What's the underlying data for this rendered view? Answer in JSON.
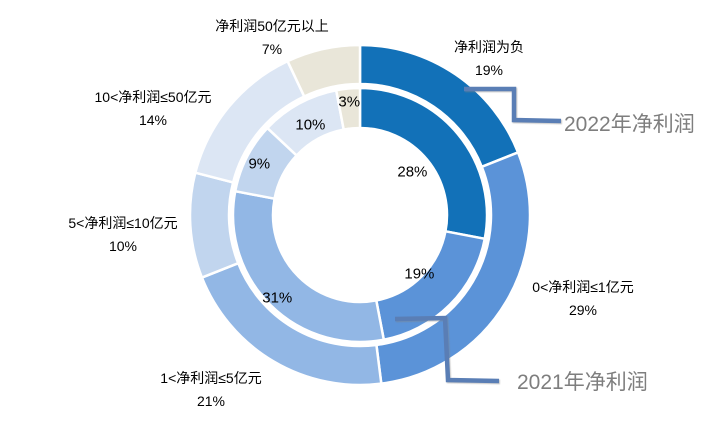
{
  "chart_data": {
    "type": "doughnut",
    "title": "",
    "categories": [
      "净利润为负",
      "0<净利润≤1亿元",
      "1<净利润≤5亿元",
      "5<净利润≤10亿元",
      "10<净利润≤50亿元",
      "净利润50亿元以上"
    ],
    "unit": "%",
    "series": [
      {
        "name": "2022年净利润",
        "ring": "outer",
        "values": [
          19,
          29,
          21,
          10,
          14,
          7
        ]
      },
      {
        "name": "2021年净利润",
        "ring": "inner",
        "values": [
          28,
          19,
          31,
          9,
          10,
          3
        ]
      }
    ],
    "segment_colors": [
      "#1271B8",
      "#5B93D8",
      "#92B7E5",
      "#C1D5EE",
      "#DCE6F4",
      "#E9E6D9"
    ],
    "start_angle_deg": 0,
    "direction": "clockwise",
    "legend": "none",
    "grid": false,
    "outer_ring_labels": [
      "净利润为负 19%",
      "0<净利润≤1亿元 29%",
      "1<净利润≤5亿元 21%",
      "5<净利润≤10亿元 10%",
      "10<净利润≤50亿元 14%",
      "净利润50亿元以上 7%"
    ],
    "inner_ring_labels": [
      "28%",
      "19%",
      "31%",
      "9%",
      "10%",
      "3%"
    ]
  },
  "styles": {
    "background": "#FFFFFF",
    "connector_color": "#5A7EB5",
    "series_label_color": "#7E7E7E",
    "data_label_color": "#000000",
    "segment_border_color": "#FFFFFF"
  }
}
